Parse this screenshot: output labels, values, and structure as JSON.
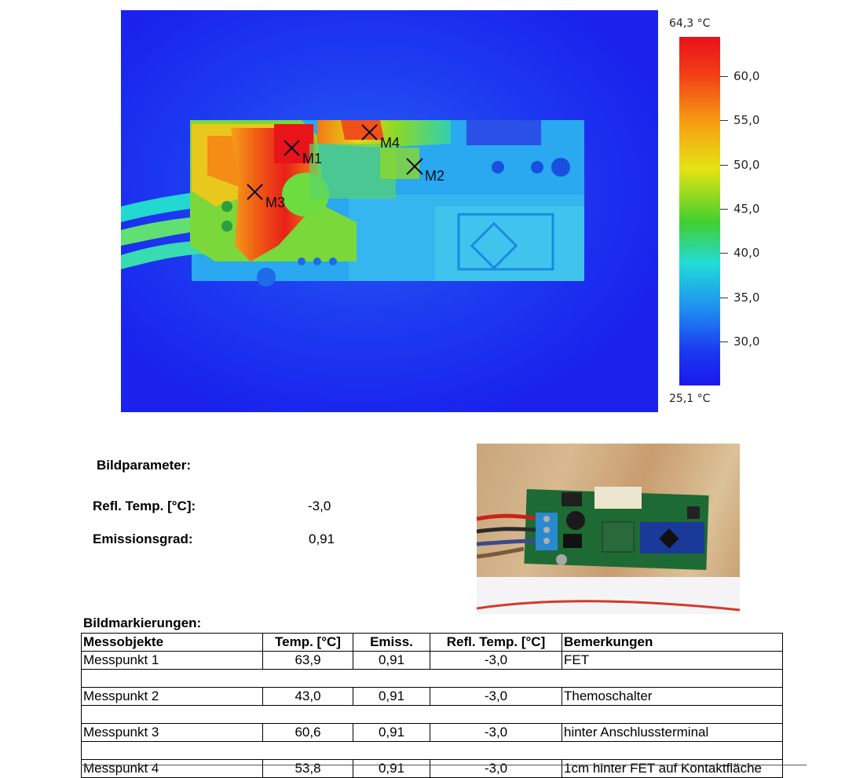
{
  "thermal": {
    "markers": [
      {
        "label": "M1"
      },
      {
        "label": "M2"
      },
      {
        "label": "M3"
      },
      {
        "label": "M4"
      }
    ],
    "scale": {
      "max": "64,3 °C",
      "min": "25,1 °C",
      "ticks": [
        "60,0",
        "55,0",
        "50,0",
        "45,0",
        "40,0",
        "35,0",
        "30,0"
      ]
    }
  },
  "parameters": {
    "title": "Bildparameter:",
    "refl_temp_label": "Refl. Temp. [°C]:",
    "refl_temp_value": "-3,0",
    "emission_label": "Emissionsgrad:",
    "emission_value": "0,91"
  },
  "markings": {
    "title": "Bildmarkierungen:",
    "headers": [
      "Messobjekte",
      "Temp. [°C]",
      "Emiss.",
      "Refl. Temp. [°C]",
      "Bemerkungen"
    ],
    "rows": [
      [
        "Messpunkt 1",
        "63,9",
        "0,91",
        "-3,0",
        "FET"
      ],
      [
        "Messpunkt 2",
        "43,0",
        "0,91",
        "-3,0",
        "Themoschalter"
      ],
      [
        "Messpunkt 3",
        "60,6",
        "0,91",
        "-3,0",
        "hinter Anschlussterminal"
      ],
      [
        "Messpunkt 4",
        "53,8",
        "0,91",
        "-3,0",
        "1cm hinter FET auf Kontaktfläche"
      ]
    ]
  }
}
